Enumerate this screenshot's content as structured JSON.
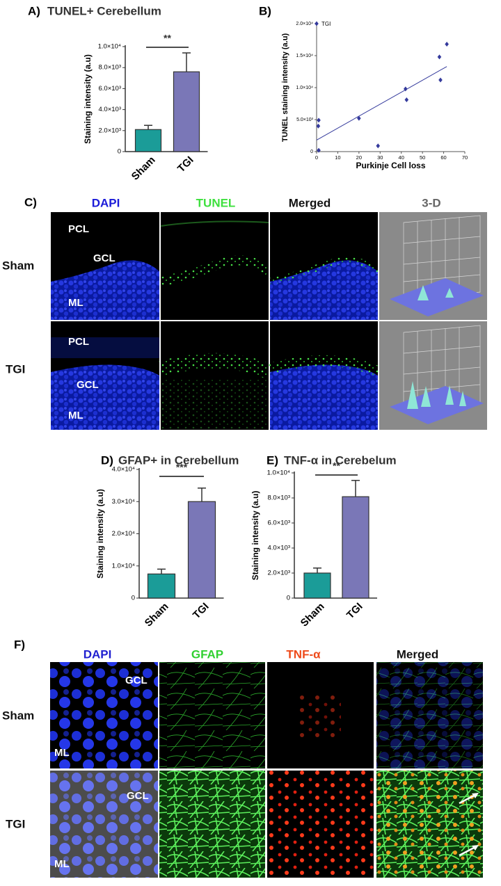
{
  "chart_data": [
    {
      "type": "bar",
      "panel_label": "A)",
      "title": "TUNEL+ Cerebellum",
      "y_label": "Staining intensity (a.u)",
      "categories": [
        "Sham",
        "TGI"
      ],
      "values": [
        2100,
        7600
      ],
      "errors": [
        400,
        1800
      ],
      "colors": [
        "#1b9c98",
        "#7a77b7"
      ],
      "ylim": [
        0,
        10000
      ],
      "yticks": [
        0,
        {
          "value": 2000,
          "label": "2.0×10³"
        },
        {
          "value": 4000,
          "label": "4.0×10³"
        },
        {
          "value": 6000,
          "label": "6.0×10³"
        },
        {
          "value": 8000,
          "label": "8.0×10³"
        },
        {
          "value": 10000,
          "label": "1.0×10⁴"
        }
      ],
      "significance": "**"
    },
    {
      "type": "scatter",
      "panel_label": "B)",
      "x_label": "Purkinje Cell loss",
      "y_label": "TUNEL staining intensity (a.u)",
      "x": [
        1,
        0.8,
        1,
        20,
        29,
        42,
        42.5,
        58,
        58.5,
        61.5
      ],
      "series": [
        {
          "name": "TGI",
          "color": "#343a9c",
          "values": [
            4900,
            4000,
            200,
            5200,
            900,
            9800,
            8100,
            14800,
            11200,
            16800
          ]
        }
      ],
      "trend_line": {
        "x": [
          0,
          61.5
        ],
        "values": [
          1800,
          13300
        ]
      },
      "xlim": [
        0,
        70
      ],
      "xticks": [
        0,
        10,
        20,
        30,
        40,
        50,
        60,
        70
      ],
      "ylim": [
        0,
        20000
      ],
      "yticks": [
        0,
        {
          "value": 5000,
          "label": "5.0×10³"
        },
        {
          "value": 10000,
          "label": "1.0×10⁴"
        },
        {
          "value": 15000,
          "label": "1.5×10⁴"
        },
        {
          "value": 20000,
          "label": "2.0×10⁴"
        }
      ]
    },
    {
      "type": "bar",
      "panel_label": "D)",
      "title": "GFAP+ in Cerebellum",
      "y_label": "Staining intensity (a.u)",
      "categories": [
        "Sham",
        "TGI"
      ],
      "values": [
        7500,
        30000
      ],
      "errors": [
        1500,
        4200
      ],
      "colors": [
        "#1b9c98",
        "#7a77b7"
      ],
      "ylim": [
        0,
        40000
      ],
      "yticks": [
        0,
        {
          "value": 10000,
          "label": "1.0×10⁴"
        },
        {
          "value": 20000,
          "label": "2.0×10⁴"
        },
        {
          "value": 30000,
          "label": "3.0×10⁴"
        },
        {
          "value": 40000,
          "label": "4.0×10⁴"
        }
      ],
      "significance": "***"
    },
    {
      "type": "bar",
      "panel_label": "E)",
      "title": "TNF-α in Cerebelum",
      "y_label": "Staining intensity (a.u)",
      "categories": [
        "Sham",
        "TGI"
      ],
      "values": [
        2000,
        8100
      ],
      "errors": [
        400,
        1300
      ],
      "colors": [
        "#1b9c98",
        "#7a77b7"
      ],
      "ylim": [
        0,
        10000
      ],
      "yticks": [
        0,
        {
          "value": 2000,
          "label": "2.0×10³"
        },
        {
          "value": 4000,
          "label": "4.0×10³"
        },
        {
          "value": 6000,
          "label": "6.0×10³"
        },
        {
          "value": 8000,
          "label": "8.0×10³"
        },
        {
          "value": 10000,
          "label": "1.0×10⁴"
        }
      ],
      "significance": "**"
    }
  ],
  "panel_c": {
    "label": "C)",
    "columns": [
      "DAPI",
      "TUNEL",
      "Merged",
      "3-D"
    ],
    "rows": [
      "Sham",
      "TGI"
    ],
    "overlays": [
      "PCL",
      "GCL",
      "ML",
      "PCL",
      "GCL",
      "ML"
    ]
  },
  "panel_f": {
    "label": "F)",
    "columns": [
      "DAPI",
      "GFAP",
      "TNF-α",
      "Merged"
    ],
    "rows": [
      "Sham",
      "TGI"
    ],
    "overlays": [
      "GCL",
      "ML",
      "GCL",
      "ML"
    ]
  }
}
